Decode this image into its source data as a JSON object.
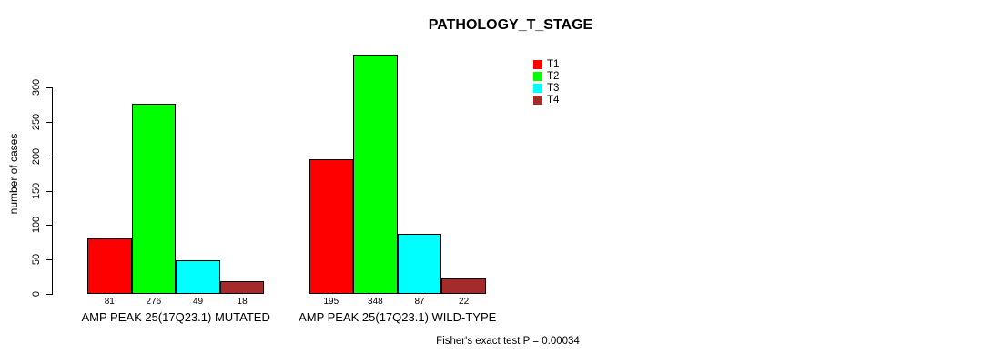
{
  "title": "PATHOLOGY_T_STAGE",
  "chart_data": {
    "type": "bar",
    "title": "PATHOLOGY_T_STAGE",
    "xlabel": "",
    "ylabel": "number of cases",
    "yticks": [
      0,
      50,
      100,
      150,
      200,
      250,
      300
    ],
    "ylim": [
      0,
      348
    ],
    "grid": false,
    "legend_position": "top-right",
    "categories": [
      "AMP PEAK 25(17Q23.1) MUTATED",
      "AMP PEAK 25(17Q23.1) WILD-TYPE"
    ],
    "series": [
      {
        "name": "T1",
        "color": "#FF0000",
        "values": [
          81,
          195
        ]
      },
      {
        "name": "T2",
        "color": "#00FF00",
        "values": [
          276,
          348
        ]
      },
      {
        "name": "T3",
        "color": "#00FFFF",
        "values": [
          49,
          87
        ]
      },
      {
        "name": "T4",
        "color": "#A52A2A",
        "values": [
          18,
          22
        ]
      }
    ],
    "bar_value_labels": [
      [
        "81",
        "276",
        "49",
        "18"
      ],
      [
        "195",
        "348",
        "87",
        "22"
      ]
    ],
    "annotation": "Fisher's exact test P = 0.00034"
  }
}
